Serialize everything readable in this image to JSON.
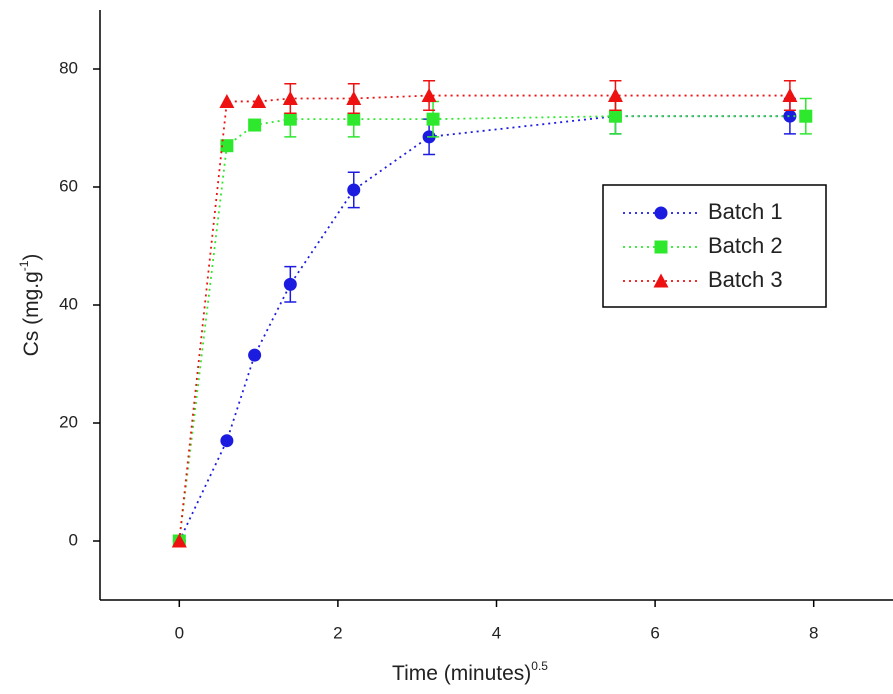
{
  "chart_data": {
    "type": "line",
    "x_label": "Time (minutes)",
    "x_label_sup": "0.5",
    "y_label": "Cs (mg.g",
    "y_label_sup": "-1",
    "y_label_end": ")",
    "xlim": [
      -1,
      9
    ],
    "ylim": [
      -10,
      90
    ],
    "xticks": [
      0,
      2,
      4,
      6,
      8
    ],
    "yticks": [
      0,
      20,
      40,
      60,
      80
    ],
    "legend": "center right",
    "series": [
      {
        "name": "Batch 1",
        "color": "#1c1ce0",
        "marker": "circle",
        "x": [
          0,
          0.6,
          0.95,
          1.4,
          2.2,
          3.15,
          5.5,
          7.7
        ],
        "values": [
          0,
          17,
          31.5,
          43.5,
          59.5,
          68.5,
          72,
          72
        ],
        "errors": [
          null,
          null,
          null,
          3,
          3,
          3,
          3,
          3
        ]
      },
      {
        "name": "Batch 2",
        "color": "#2ee82e",
        "marker": "square",
        "x": [
          0,
          0.6,
          0.95,
          1.4,
          2.2,
          3.2,
          5.5,
          7.9
        ],
        "values": [
          0,
          67,
          70.5,
          71.5,
          71.5,
          71.5,
          72,
          72
        ],
        "errors": [
          null,
          null,
          null,
          3,
          3,
          3,
          3,
          3
        ]
      },
      {
        "name": "Batch 3",
        "color": "#ee1111",
        "marker": "triangle",
        "x": [
          0,
          0.6,
          1.0,
          1.4,
          2.2,
          3.15,
          5.5,
          7.7
        ],
        "values": [
          0,
          74.5,
          74.5,
          75,
          75,
          75.5,
          75.5,
          75.5
        ],
        "errors": [
          null,
          null,
          null,
          2.5,
          2.5,
          2.5,
          2.5,
          2.5
        ]
      }
    ]
  }
}
